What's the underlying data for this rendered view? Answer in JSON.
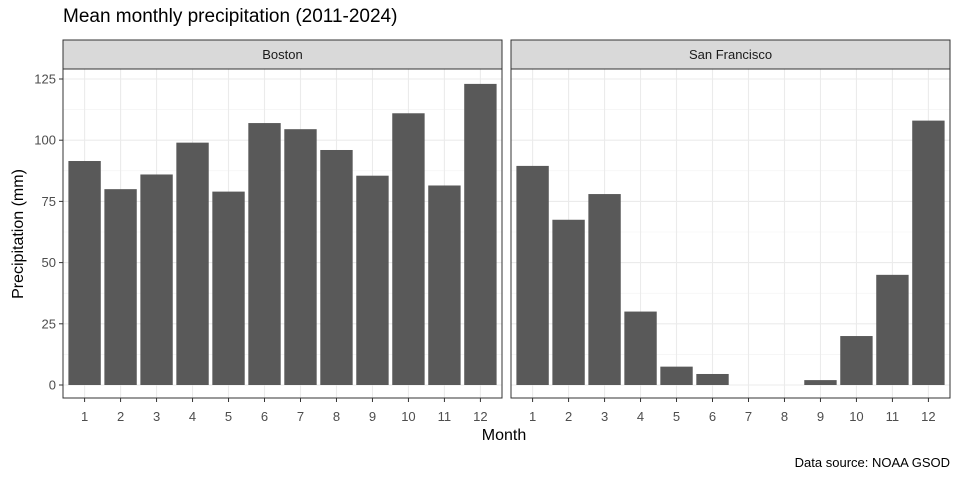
{
  "title": "Mean monthly precipitation (2011-2024)",
  "caption": "Data source: NOAA GSOD",
  "chart_data": {
    "type": "bar",
    "title": "Mean monthly precipitation (2011-2024)",
    "xlabel": "Month",
    "ylabel": "Precipitation (mm)",
    "ylim": [
      -5,
      138
    ],
    "yticks": [
      0,
      25,
      50,
      75,
      100,
      125
    ],
    "categories": [
      "1",
      "2",
      "3",
      "4",
      "5",
      "6",
      "7",
      "8",
      "9",
      "10",
      "11",
      "12"
    ],
    "grid": true,
    "panels": [
      {
        "name": "Boston",
        "values": [
          91.5,
          80,
          86,
          99,
          79,
          107,
          104.5,
          96,
          85.5,
          111,
          81.5,
          123
        ]
      },
      {
        "name": "San Francisco",
        "values": [
          89.5,
          67.5,
          78,
          30,
          7.5,
          4.5,
          0,
          0,
          2,
          20,
          45,
          108
        ]
      }
    ],
    "bar_color": "#595959",
    "strip_color": "#d9d9d9"
  }
}
